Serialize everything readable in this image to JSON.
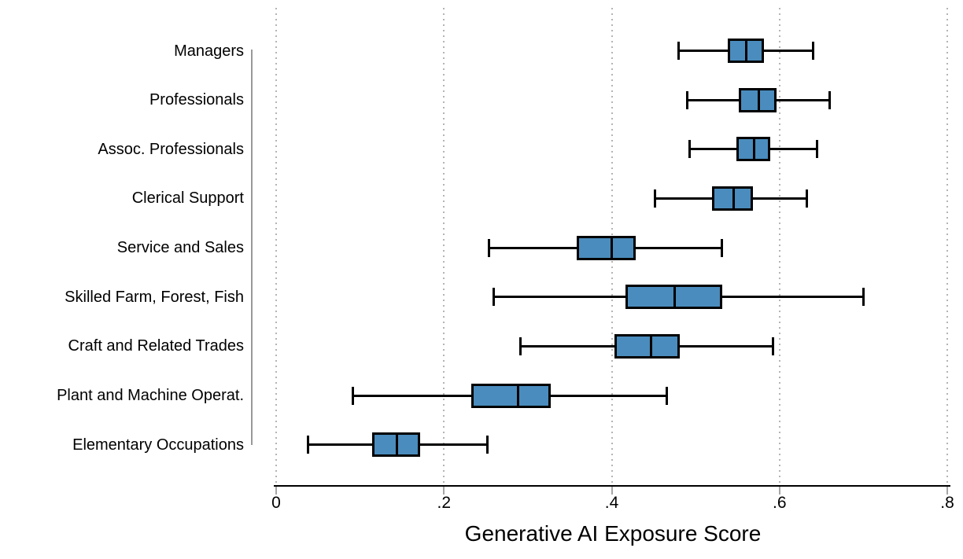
{
  "chart_data": {
    "type": "boxplot",
    "orientation": "horizontal",
    "title": "",
    "xlabel": "Generative AI Exposure Score",
    "ylabel": "",
    "xlim": [
      0,
      0.8
    ],
    "x_ticks": [
      0,
      0.2,
      0.4,
      0.6,
      0.8
    ],
    "x_tick_labels": [
      "0",
      ".2",
      ".4",
      ".6",
      ".8"
    ],
    "grid": "vertical dotted gridlines at each x tick",
    "legend": "none",
    "categories": [
      "Managers",
      "Professionals",
      "Assoc. Professionals",
      "Clerical Support",
      "Service and Sales",
      "Skilled Farm, Forest, Fish",
      "Craft and Related Trades",
      "Plant and Machine Operat.",
      "Elementary Occupations"
    ],
    "series": [
      {
        "category": "Managers",
        "whisker_low": 0.48,
        "q1": 0.54,
        "median": 0.56,
        "q3": 0.58,
        "whisker_high": 0.64
      },
      {
        "category": "Professionals",
        "whisker_low": 0.49,
        "q1": 0.553,
        "median": 0.575,
        "q3": 0.595,
        "whisker_high": 0.66
      },
      {
        "category": "Assoc. Professionals",
        "whisker_low": 0.493,
        "q1": 0.55,
        "median": 0.57,
        "q3": 0.588,
        "whisker_high": 0.645
      },
      {
        "category": "Clerical Support",
        "whisker_low": 0.452,
        "q1": 0.521,
        "median": 0.545,
        "q3": 0.567,
        "whisker_high": 0.633
      },
      {
        "category": "Service and Sales",
        "whisker_low": 0.254,
        "q1": 0.36,
        "median": 0.4,
        "q3": 0.427,
        "whisker_high": 0.531
      },
      {
        "category": "Skilled Farm, Forest, Fish",
        "whisker_low": 0.259,
        "q1": 0.418,
        "median": 0.475,
        "q3": 0.53,
        "whisker_high": 0.7
      },
      {
        "category": "Craft and Related Trades",
        "whisker_low": 0.291,
        "q1": 0.405,
        "median": 0.447,
        "q3": 0.48,
        "whisker_high": 0.592
      },
      {
        "category": "Plant and Machine Operat.",
        "whisker_low": 0.091,
        "q1": 0.234,
        "median": 0.288,
        "q3": 0.326,
        "whisker_high": 0.466
      },
      {
        "category": "Elementary Occupations",
        "whisker_low": 0.038,
        "q1": 0.116,
        "median": 0.144,
        "q3": 0.17,
        "whisker_high": 0.252
      }
    ],
    "colors": {
      "box_fill": "#4a8cbd",
      "box_border": "#000000",
      "whisker": "#000000",
      "median": "#000000",
      "grid_dots": "#b4b4b4",
      "axis_line": "#000000",
      "tick_mark": "#a6a6a6",
      "category_axis_line": "#9a9a9a",
      "text": "#000000",
      "background": "#ffffff"
    }
  }
}
